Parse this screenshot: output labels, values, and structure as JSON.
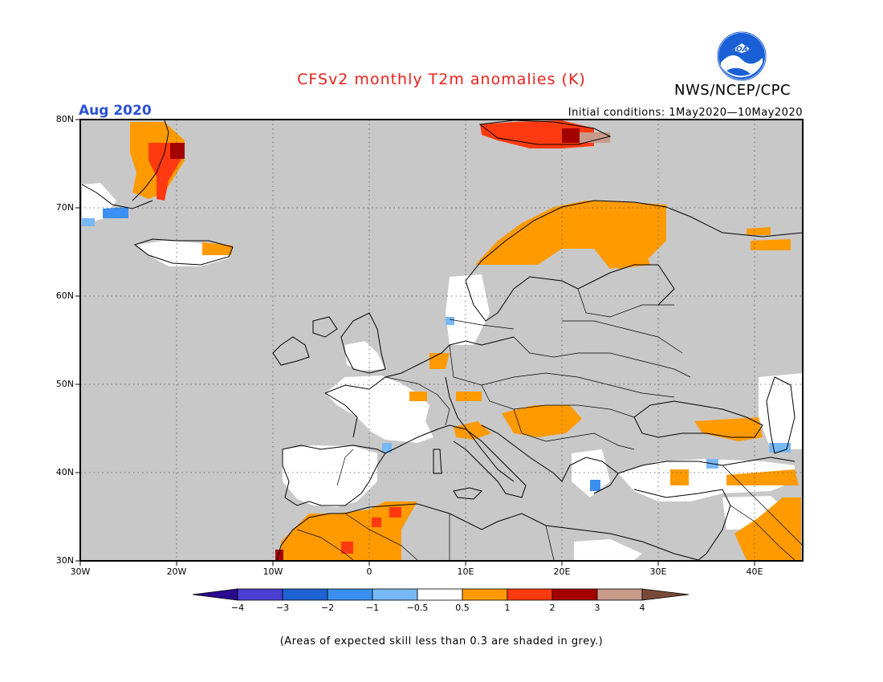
{
  "title": "CFSv2 monthly T2m anomalies (K)",
  "agency": "NWS/NCEP/CPC",
  "logo_text": "NOAA",
  "month_label": "Aug 2020",
  "initial_conditions": "Initial conditions: 1May2020—10May2020",
  "footnote": "(Areas of expected skill less than 0.3 are shaded in grey.)",
  "map": {
    "region": "Europe",
    "lon_range": [
      -30,
      45
    ],
    "lat_range": [
      30,
      80
    ],
    "lat_ticks": [
      "80N",
      "70N",
      "60N",
      "50N",
      "40N",
      "30N"
    ],
    "lon_ticks": [
      "30W",
      "20W",
      "10W",
      "0",
      "10E",
      "20E",
      "30E",
      "40E"
    ],
    "background_color": "#c8c8c8"
  },
  "colorbar": {
    "tick_labels": [
      "−4",
      "−3",
      "−2",
      "−1",
      "−0.5",
      "0.5",
      "1",
      "2",
      "3",
      "4"
    ],
    "colors": [
      "#2a0a8f",
      "#4a3fd0",
      "#1f63d2",
      "#3b8ff0",
      "#77b8f5",
      "#ffffff",
      "#ff9a00",
      "#ff3a10",
      "#a50000",
      "#c79a8a",
      "#7a4a38"
    ]
  },
  "anomaly_regions": [
    {
      "name": "Greenland east coast",
      "category": "0.5 to 1"
    },
    {
      "name": "Greenland east coast",
      "category": "1 to 2"
    },
    {
      "name": "Svalbard",
      "category": "1 to 2"
    },
    {
      "name": "Scandinavia north",
      "category": "0.5 to 1"
    },
    {
      "name": "Finland / Karelia",
      "category": "0.5 to 1"
    },
    {
      "name": "France",
      "category": "-0.5 to 0.5"
    },
    {
      "name": "Iberia",
      "category": "-0.5 to 0.5"
    },
    {
      "name": "Morocco / Algeria",
      "category": "0.5 to 1"
    },
    {
      "name": "Balkans",
      "category": "0.5 to 1"
    },
    {
      "name": "Turkey",
      "category": "0.5 to 1"
    },
    {
      "name": "Middle East",
      "category": "0.5 to 1"
    },
    {
      "name": "Caucasus",
      "category": "0.5 to 1"
    }
  ]
}
